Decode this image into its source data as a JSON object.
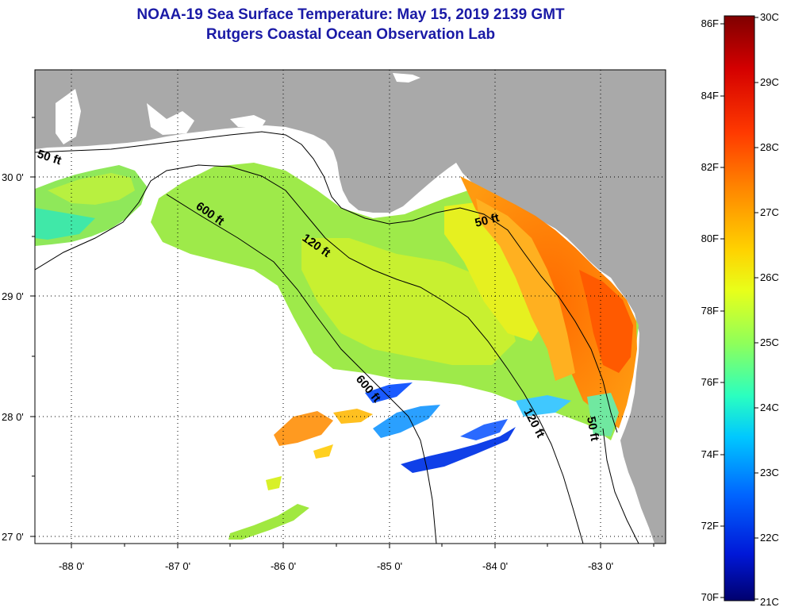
{
  "title": "NOAA-19 Sea Surface Temperature:  May 15, 2019 2139 GMT",
  "subtitle": "Rutgers Coastal Ocean Observation Lab",
  "axes": {
    "longitude_ticks": [
      "-88 0'",
      "-87 0'",
      "-86 0'",
      "-85 0'",
      "-84 0'",
      "-83 0'"
    ],
    "latitude_ticks": [
      "30 0'",
      "29 0'",
      "28 0'",
      "27 0'"
    ]
  },
  "contour_labels": [
    "50 ft",
    "600 ft",
    "120 ft",
    "50 ft",
    "600 ft",
    "120 ft",
    "50 ft"
  ],
  "colorbar": {
    "fahrenheit": [
      "86F",
      "84F",
      "82F",
      "80F",
      "78F",
      "76F",
      "74F",
      "72F",
      "70F"
    ],
    "celsius": [
      "30C",
      "29C",
      "28C",
      "27C",
      "26C",
      "25C",
      "24C",
      "23C",
      "22C",
      "21C"
    ]
  },
  "colors": {
    "land": "#a9a9a9",
    "title": "#1a1aa6",
    "sst_scale": [
      "#7f0000",
      "#d40000",
      "#ff3a00",
      "#ff8a00",
      "#ffd200",
      "#e8ff1a",
      "#8fff5a",
      "#2affc0",
      "#00c8ff",
      "#0064ff",
      "#0018d8",
      "#00006e"
    ]
  }
}
